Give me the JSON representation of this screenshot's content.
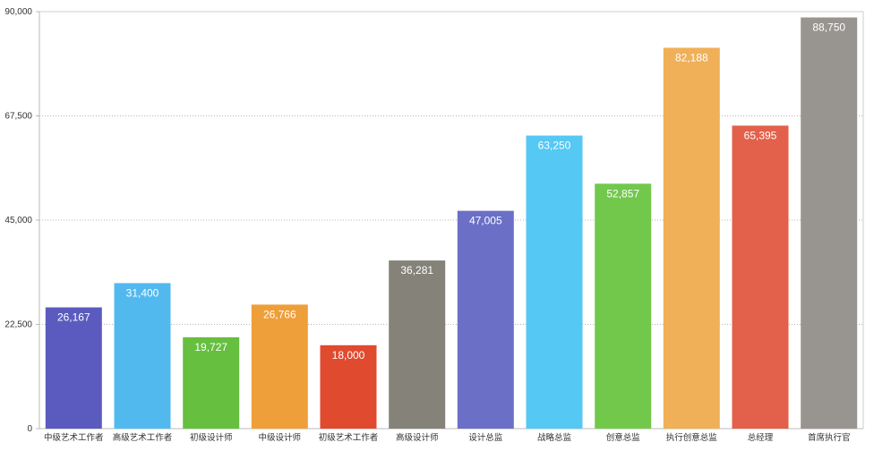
{
  "chart_data": {
    "type": "bar",
    "title": "",
    "xlabel": "",
    "ylabel": "",
    "ylim": [
      0,
      90000
    ],
    "yticks": [
      0,
      22500,
      45000,
      67500,
      90000
    ],
    "ytick_labels": [
      "0",
      "22,500",
      "45,000",
      "67,500",
      "90,000"
    ],
    "grid": "horizontal dotted",
    "categories": [
      "中级艺术工作者",
      "高级艺术工作者",
      "初级设计师",
      "中级设计师",
      "初级艺术工作者",
      "高级设计师",
      "设计总监",
      "战略总监",
      "创意总监",
      "执行创意总监",
      "总经理",
      "首席执行官"
    ],
    "values": [
      26167,
      31400,
      19727,
      26766,
      18000,
      36281,
      47005,
      63250,
      52857,
      82188,
      65395,
      88750
    ],
    "value_labels": [
      "26,167",
      "31,400",
      "19,727",
      "26,766",
      "18,000",
      "36,281",
      "47,005",
      "63,250",
      "52,857",
      "82,188",
      "65,395",
      "88,750"
    ],
    "colors": [
      "#5b5bbf",
      "#52b9ef",
      "#66bf3f",
      "#ee9f3a",
      "#e04a2f",
      "#858279",
      "#6b6fc6",
      "#55c8f4",
      "#72c84b",
      "#f0b058",
      "#e3604a",
      "#989490"
    ]
  }
}
